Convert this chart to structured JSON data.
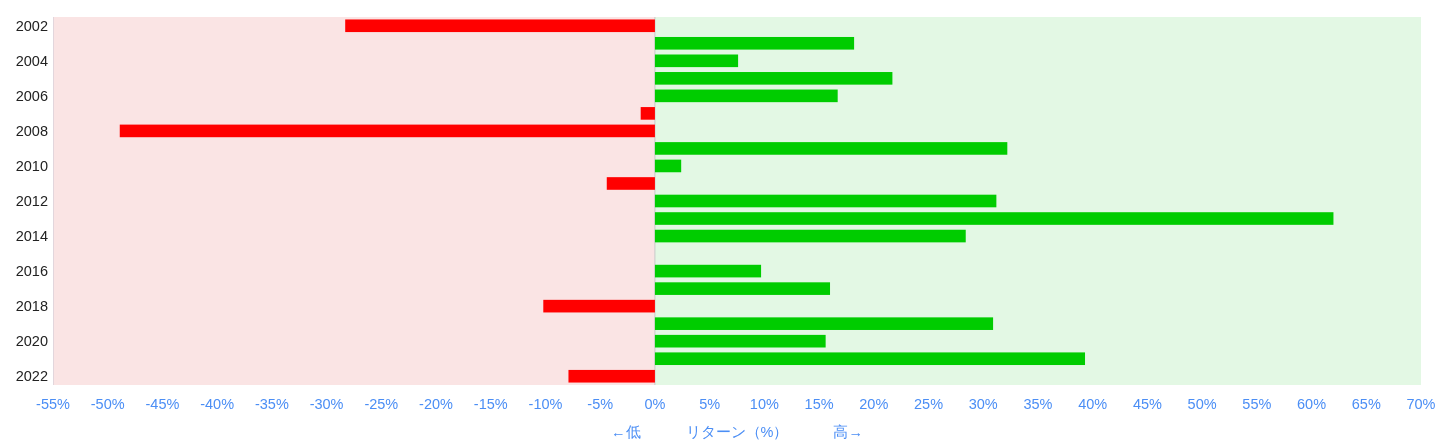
{
  "chart_data": {
    "type": "bar",
    "orientation": "horizontal",
    "xlabel": "←低　　　リターン（%）　　　高→",
    "categories": [
      "2002",
      null,
      "2004",
      null,
      "2006",
      null,
      "2008",
      null,
      "2010",
      null,
      "2012",
      null,
      "2014",
      null,
      "2016",
      null,
      "2018",
      null,
      "2020",
      null,
      "2022"
    ],
    "values": [
      -28.3,
      18.2,
      7.6,
      21.7,
      16.7,
      -1.3,
      -48.9,
      32.2,
      2.4,
      -4.4,
      31.2,
      62.0,
      28.4,
      null,
      9.7,
      16.0,
      -10.2,
      30.9,
      15.6,
      39.3,
      -7.9
    ],
    "colors": [
      "#ff0000",
      "#00cc00",
      "#00cc00",
      "#00cc00",
      "#00cc00",
      "#ff0000",
      "#ff0000",
      "#00cc00",
      "#00cc00",
      "#ff0000",
      "#00cc00",
      "#00cc00",
      "#00cc00",
      null,
      "#00cc00",
      "#00cc00",
      "#ff0000",
      "#00cc00",
      "#00cc00",
      "#00cc00",
      "#ff0000"
    ],
    "xlim": [
      -55,
      70
    ],
    "xticks": [
      {
        "value": -55,
        "label": "-55%"
      },
      {
        "value": -50,
        "label": "-50%"
      },
      {
        "value": -45,
        "label": "-45%"
      },
      {
        "value": -40,
        "label": "-40%"
      },
      {
        "value": -35,
        "label": "-35%"
      },
      {
        "value": -30,
        "label": "-30%"
      },
      {
        "value": -25,
        "label": "-25%"
      },
      {
        "value": -20,
        "label": "-20%"
      },
      {
        "value": -15,
        "label": "-15%"
      },
      {
        "value": -10,
        "label": "-10%"
      },
      {
        "value": -5,
        "label": "-5%"
      },
      {
        "value": 0,
        "label": "0%"
      },
      {
        "value": 5,
        "label": "5%"
      },
      {
        "value": 10,
        "label": "10%"
      },
      {
        "value": 15,
        "label": "15%"
      },
      {
        "value": 20,
        "label": "20%"
      },
      {
        "value": 25,
        "label": "25%"
      },
      {
        "value": 30,
        "label": "30%"
      },
      {
        "value": 35,
        "label": "35%"
      },
      {
        "value": 40,
        "label": "40%"
      },
      {
        "value": 45,
        "label": "45%"
      },
      {
        "value": 50,
        "label": "50%"
      },
      {
        "value": 55,
        "label": "55%"
      },
      {
        "value": 60,
        "label": "60%"
      },
      {
        "value": 65,
        "label": "65%"
      },
      {
        "value": 70,
        "label": "70%"
      }
    ],
    "bands": [
      {
        "axis": "x",
        "from": -55,
        "to": 0,
        "color": "#fae4e4"
      },
      {
        "axis": "x",
        "from": 0,
        "to": 70,
        "color": "#e3f8e4"
      }
    ],
    "ref_lines": [
      {
        "axis": "x",
        "value": 0,
        "color": "#c8c8c8"
      }
    ]
  }
}
